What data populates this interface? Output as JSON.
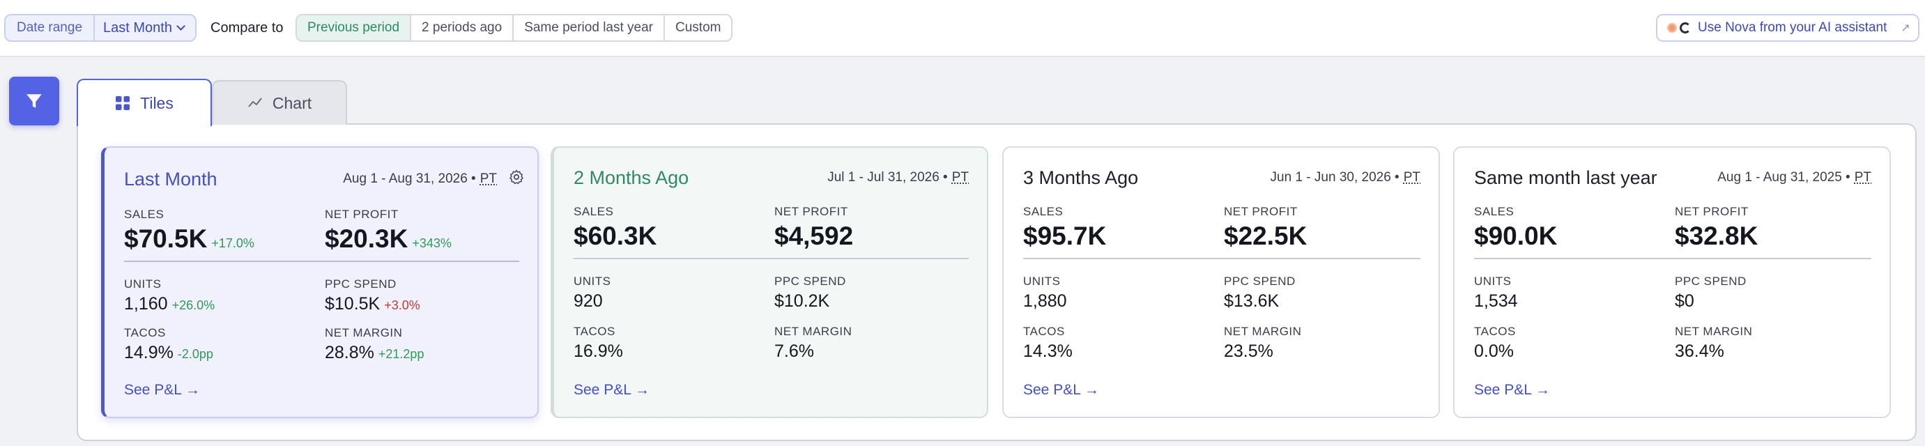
{
  "toolbar": {
    "date_range_label": "Date range",
    "date_range_value": "Last Month",
    "compare_label": "Compare to",
    "compare_options": [
      "Previous period",
      "2 periods ago",
      "Same period last year",
      "Custom"
    ],
    "compare_active": "Previous period",
    "nova_label": "Use Nova from your AI assistant"
  },
  "tabs": [
    {
      "label": "Tiles",
      "active": true,
      "icon": "grid-icon"
    },
    {
      "label": "Chart",
      "active": false,
      "icon": "line-chart-icon"
    }
  ],
  "cards": [
    {
      "title": "Last Month",
      "range": "Aug 1 - Aug 31, 2026 •",
      "tz": "PT",
      "sales_label": "SALES",
      "sales": "$70.5K",
      "sales_delta": "+17.0%",
      "profit_label": "NET PROFIT",
      "profit": "$20.3K",
      "profit_delta": "+343%",
      "units_label": "UNITS",
      "units": "1,160",
      "units_delta": "+26.0%",
      "ppc_label": "PPC SPEND",
      "ppc": "$10.5K",
      "ppc_delta": "+3.0%",
      "tacos_label": "TACOS",
      "tacos": "14.9%",
      "tacos_delta": "-2.0pp",
      "margin_label": "NET MARGIN",
      "margin": "28.8%",
      "margin_delta": "+21.2pp",
      "link": "See P&L →"
    },
    {
      "title": "2 Months Ago",
      "range": "Jul 1 - Jul 31, 2026 •",
      "tz": "PT",
      "sales_label": "SALES",
      "sales": "$60.3K",
      "profit_label": "NET PROFIT",
      "profit": "$4,592",
      "units_label": "UNITS",
      "units": "920",
      "ppc_label": "PPC SPEND",
      "ppc": "$10.2K",
      "tacos_label": "TACOS",
      "tacos": "16.9%",
      "margin_label": "NET MARGIN",
      "margin": "7.6%",
      "link": "See P&L →"
    },
    {
      "title": "3 Months Ago",
      "range": "Jun 1 - Jun 30, 2026 •",
      "tz": "PT",
      "sales_label": "SALES",
      "sales": "$95.7K",
      "profit_label": "NET PROFIT",
      "profit": "$22.5K",
      "units_label": "UNITS",
      "units": "1,880",
      "ppc_label": "PPC SPEND",
      "ppc": "$13.6K",
      "tacos_label": "TACOS",
      "tacos": "14.3%",
      "margin_label": "NET MARGIN",
      "margin": "23.5%",
      "link": "See P&L →"
    },
    {
      "title": "Same month last year",
      "range": "Aug 1 - Aug 31, 2025 •",
      "tz": "PT",
      "sales_label": "SALES",
      "sales": "$90.0K",
      "profit_label": "NET PROFIT",
      "profit": "$32.8K",
      "units_label": "UNITS",
      "units": "1,534",
      "ppc_label": "PPC SPEND",
      "ppc": "$0",
      "tacos_label": "TACOS",
      "tacos": "0.0%",
      "margin_label": "NET MARGIN",
      "margin": "36.4%",
      "link": "See P&L →"
    }
  ],
  "colors": {
    "accent": "#5462e6",
    "positive": "#2f9a55",
    "negative": "#c23a35",
    "compare_active_bg": "#e7f3ee"
  }
}
